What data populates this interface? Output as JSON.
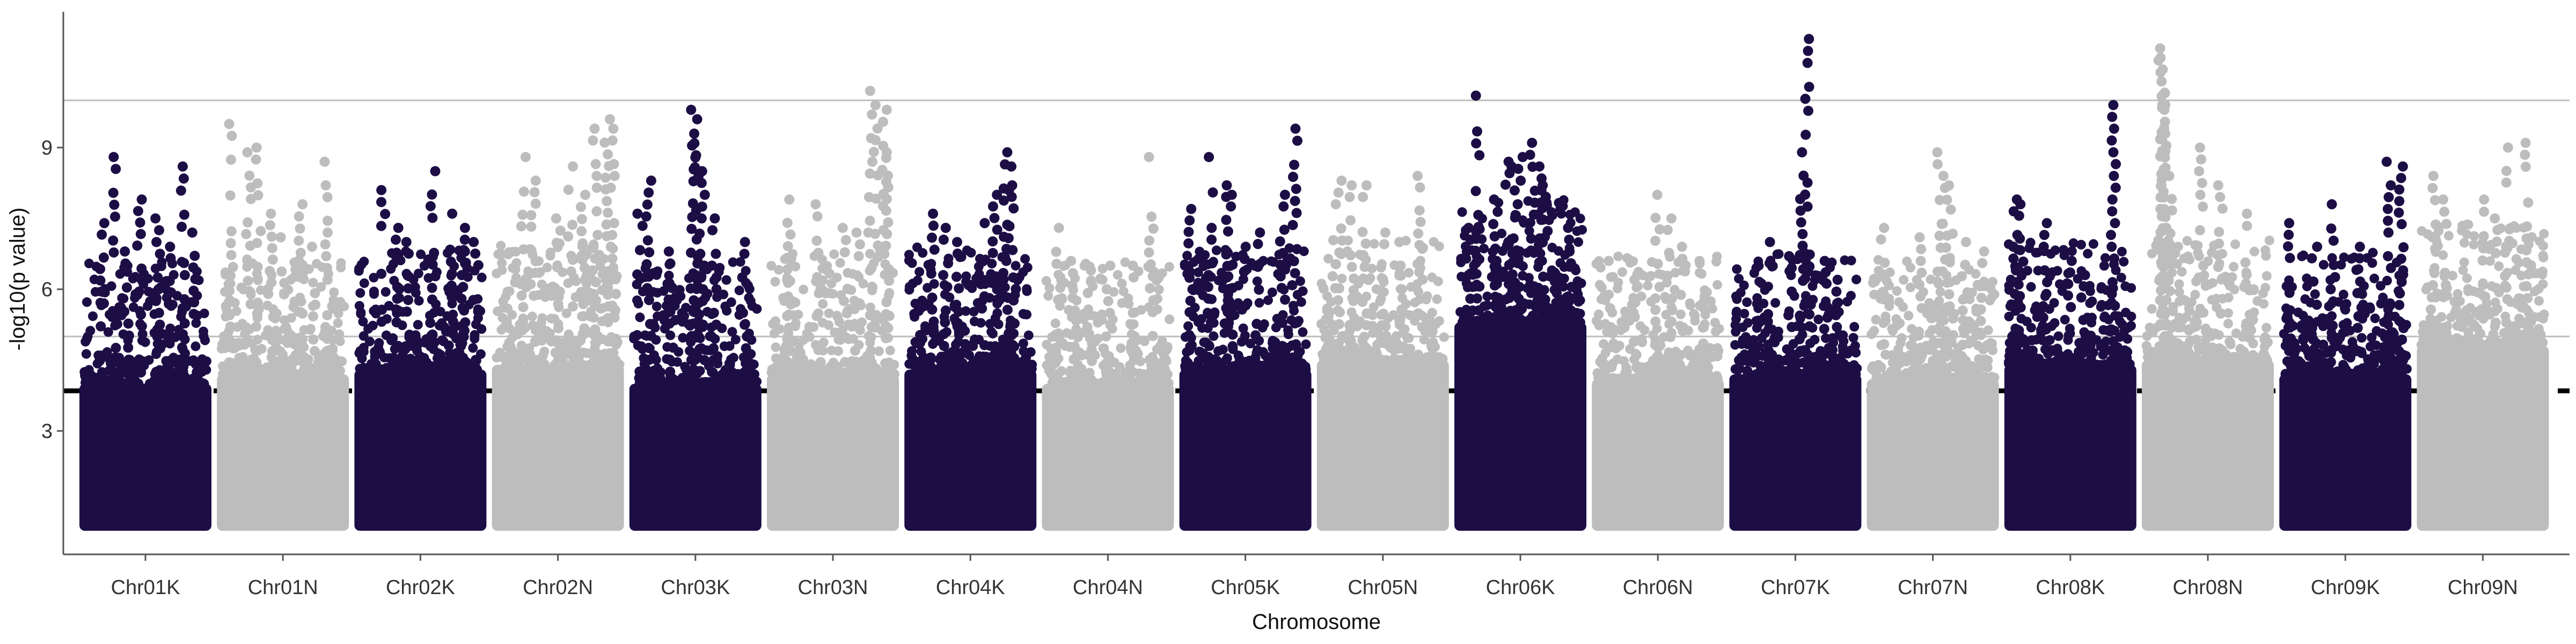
{
  "chart_data": {
    "type": "scatter",
    "subtype": "manhattan",
    "title": "",
    "xlabel": "Chromosome",
    "ylabel": "-log10(p value)",
    "ylim": [
      1,
      12
    ],
    "yticks": [
      3,
      6,
      9
    ],
    "thresholds": [
      {
        "value": 3.85,
        "style": "dashed",
        "color": "#000000"
      },
      {
        "value": 5.0,
        "style": "solid",
        "color": "#bdbdbd"
      },
      {
        "value": 10.0,
        "style": "solid",
        "color": "#bdbdbd"
      }
    ],
    "colors": {
      "dark": "#1c0e45",
      "light": "#bdbdbd"
    },
    "categories": [
      "Chr01K",
      "Chr01N",
      "Chr02K",
      "Chr02N",
      "Chr03K",
      "Chr03N",
      "Chr04K",
      "Chr04N",
      "Chr05K",
      "Chr05N",
      "Chr06K",
      "Chr06N",
      "Chr07K",
      "Chr07N",
      "Chr08K",
      "Chr08N",
      "Chr09K",
      "Chr09N"
    ],
    "series": [
      {
        "category": "Chr01K",
        "color": "dark",
        "bulk_top": 4.0,
        "peaks": [
          [
            0.15,
            7.4
          ],
          [
            0.25,
            8.8
          ],
          [
            0.45,
            7.9
          ],
          [
            0.6,
            7.5
          ],
          [
            0.8,
            8.6
          ],
          [
            0.9,
            7.2
          ],
          [
            0.35,
            6.8
          ],
          [
            0.7,
            6.9
          ]
        ]
      },
      {
        "category": "Chr01N",
        "color": "light",
        "bulk_top": 4.2,
        "peaks": [
          [
            0.08,
            9.5
          ],
          [
            0.22,
            8.9
          ],
          [
            0.3,
            9.0
          ],
          [
            0.65,
            7.8
          ],
          [
            0.85,
            8.7
          ],
          [
            0.5,
            7.1
          ],
          [
            0.4,
            7.6
          ],
          [
            0.75,
            6.9
          ]
        ]
      },
      {
        "category": "Chr02K",
        "color": "dark",
        "bulk_top": 4.3,
        "peaks": [
          [
            0.2,
            8.1
          ],
          [
            0.6,
            8.5
          ],
          [
            0.75,
            7.6
          ],
          [
            0.4,
            7.0
          ],
          [
            0.85,
            7.3
          ],
          [
            0.3,
            7.3
          ],
          [
            0.95,
            7.0
          ]
        ]
      },
      {
        "category": "Chr02N",
        "color": "light",
        "bulk_top": 4.4,
        "peaks": [
          [
            0.22,
            8.8
          ],
          [
            0.3,
            8.3
          ],
          [
            0.6,
            8.6
          ],
          [
            0.8,
            9.4
          ],
          [
            0.9,
            9.6
          ],
          [
            0.95,
            9.4
          ],
          [
            0.5,
            7.5
          ],
          [
            0.7,
            8.0
          ]
        ]
      },
      {
        "category": "Chr03K",
        "color": "dark",
        "bulk_top": 4.0,
        "peaks": [
          [
            0.05,
            7.6
          ],
          [
            0.12,
            8.3
          ],
          [
            0.48,
            9.8
          ],
          [
            0.5,
            9.6
          ],
          [
            0.52,
            8.4
          ],
          [
            0.56,
            8.5
          ],
          [
            0.9,
            7.0
          ],
          [
            0.65,
            7.5
          ],
          [
            0.3,
            6.8
          ]
        ]
      },
      {
        "category": "Chr03N",
        "color": "light",
        "bulk_top": 4.2,
        "peaks": [
          [
            0.15,
            7.9
          ],
          [
            0.38,
            7.8
          ],
          [
            0.8,
            10.2
          ],
          [
            0.85,
            9.9
          ],
          [
            0.92,
            9.8
          ],
          [
            0.95,
            8.9
          ],
          [
            0.6,
            7.3
          ],
          [
            0.7,
            7.2
          ]
        ]
      },
      {
        "category": "Chr04K",
        "color": "dark",
        "bulk_top": 4.3,
        "peaks": [
          [
            0.2,
            7.6
          ],
          [
            0.3,
            7.3
          ],
          [
            0.4,
            7.0
          ],
          [
            0.7,
            8.0
          ],
          [
            0.78,
            8.9
          ],
          [
            0.82,
            8.6
          ],
          [
            0.85,
            8.2
          ],
          [
            0.6,
            7.4
          ]
        ]
      },
      {
        "category": "Chr04N",
        "color": "light",
        "bulk_top": 4.0,
        "peaks": [
          [
            0.1,
            7.3
          ],
          [
            0.2,
            6.6
          ],
          [
            0.5,
            6.5
          ],
          [
            0.85,
            8.8
          ],
          [
            0.7,
            6.5
          ],
          [
            0.35,
            6.4
          ]
        ]
      },
      {
        "category": "Chr05K",
        "color": "dark",
        "bulk_top": 4.3,
        "peaks": [
          [
            0.05,
            7.7
          ],
          [
            0.22,
            8.8
          ],
          [
            0.35,
            8.2
          ],
          [
            0.38,
            8.0
          ],
          [
            0.8,
            8.0
          ],
          [
            0.9,
            9.4
          ],
          [
            0.6,
            7.2
          ],
          [
            0.5,
            6.9
          ]
        ]
      },
      {
        "category": "Chr05N",
        "color": "light",
        "bulk_top": 4.5,
        "peaks": [
          [
            0.1,
            7.8
          ],
          [
            0.15,
            8.3
          ],
          [
            0.25,
            8.2
          ],
          [
            0.35,
            8.2
          ],
          [
            0.8,
            8.4
          ],
          [
            0.5,
            7.2
          ],
          [
            0.65,
            7.0
          ]
        ]
      },
      {
        "category": "Chr06K",
        "color": "dark",
        "bulk_top": 5.3,
        "peaks": [
          [
            0.1,
            7.3
          ],
          [
            0.15,
            10.1
          ],
          [
            0.3,
            7.9
          ],
          [
            0.4,
            8.7
          ],
          [
            0.45,
            8.6
          ],
          [
            0.5,
            8.8
          ],
          [
            0.6,
            9.1
          ],
          [
            0.65,
            8.6
          ],
          [
            0.7,
            8.2
          ],
          [
            0.9,
            7.3
          ]
        ]
      },
      {
        "category": "Chr06N",
        "color": "light",
        "bulk_top": 4.1,
        "peaks": [
          [
            0.1,
            6.6
          ],
          [
            0.3,
            6.2
          ],
          [
            0.5,
            8.0
          ],
          [
            0.6,
            7.5
          ],
          [
            0.7,
            6.9
          ],
          [
            0.85,
            6.6
          ]
        ]
      },
      {
        "category": "Chr07K",
        "color": "dark",
        "bulk_top": 4.2,
        "peaks": [
          [
            0.3,
            7.0
          ],
          [
            0.55,
            8.9
          ],
          [
            0.6,
            11.3
          ],
          [
            0.75,
            6.6
          ],
          [
            0.85,
            6.2
          ],
          [
            0.45,
            6.7
          ]
        ]
      },
      {
        "category": "Chr07N",
        "color": "light",
        "bulk_top": 4.1,
        "peaks": [
          [
            0.1,
            7.3
          ],
          [
            0.4,
            7.1
          ],
          [
            0.55,
            8.9
          ],
          [
            0.6,
            8.4
          ],
          [
            0.65,
            8.2
          ],
          [
            0.9,
            6.8
          ],
          [
            0.75,
            7.0
          ]
        ]
      },
      {
        "category": "Chr08K",
        "color": "dark",
        "bulk_top": 4.4,
        "peaks": [
          [
            0.05,
            7.9
          ],
          [
            0.1,
            7.8
          ],
          [
            0.3,
            7.4
          ],
          [
            0.85,
            9.9
          ],
          [
            0.5,
            6.6
          ],
          [
            0.6,
            6.3
          ]
        ]
      },
      {
        "category": "Chr08N",
        "color": "light",
        "bulk_top": 4.5,
        "peaks": [
          [
            0.12,
            11.1
          ],
          [
            0.13,
            10.9
          ],
          [
            0.14,
            10.4
          ],
          [
            0.15,
            10.1
          ],
          [
            0.16,
            9.8
          ],
          [
            0.45,
            9.0
          ],
          [
            0.6,
            8.2
          ],
          [
            0.8,
            7.6
          ],
          [
            0.2,
            8.4
          ]
        ]
      },
      {
        "category": "Chr09K",
        "color": "dark",
        "bulk_top": 4.2,
        "peaks": [
          [
            0.05,
            7.4
          ],
          [
            0.4,
            7.8
          ],
          [
            0.6,
            6.9
          ],
          [
            0.85,
            8.7
          ],
          [
            0.95,
            8.6
          ],
          [
            0.25,
            6.9
          ]
        ]
      },
      {
        "category": "Chr09N",
        "color": "light",
        "bulk_top": 4.8,
        "peaks": [
          [
            0.1,
            8.4
          ],
          [
            0.2,
            7.9
          ],
          [
            0.5,
            7.9
          ],
          [
            0.7,
            9.0
          ],
          [
            0.85,
            9.1
          ],
          [
            0.6,
            7.5
          ]
        ]
      }
    ]
  }
}
